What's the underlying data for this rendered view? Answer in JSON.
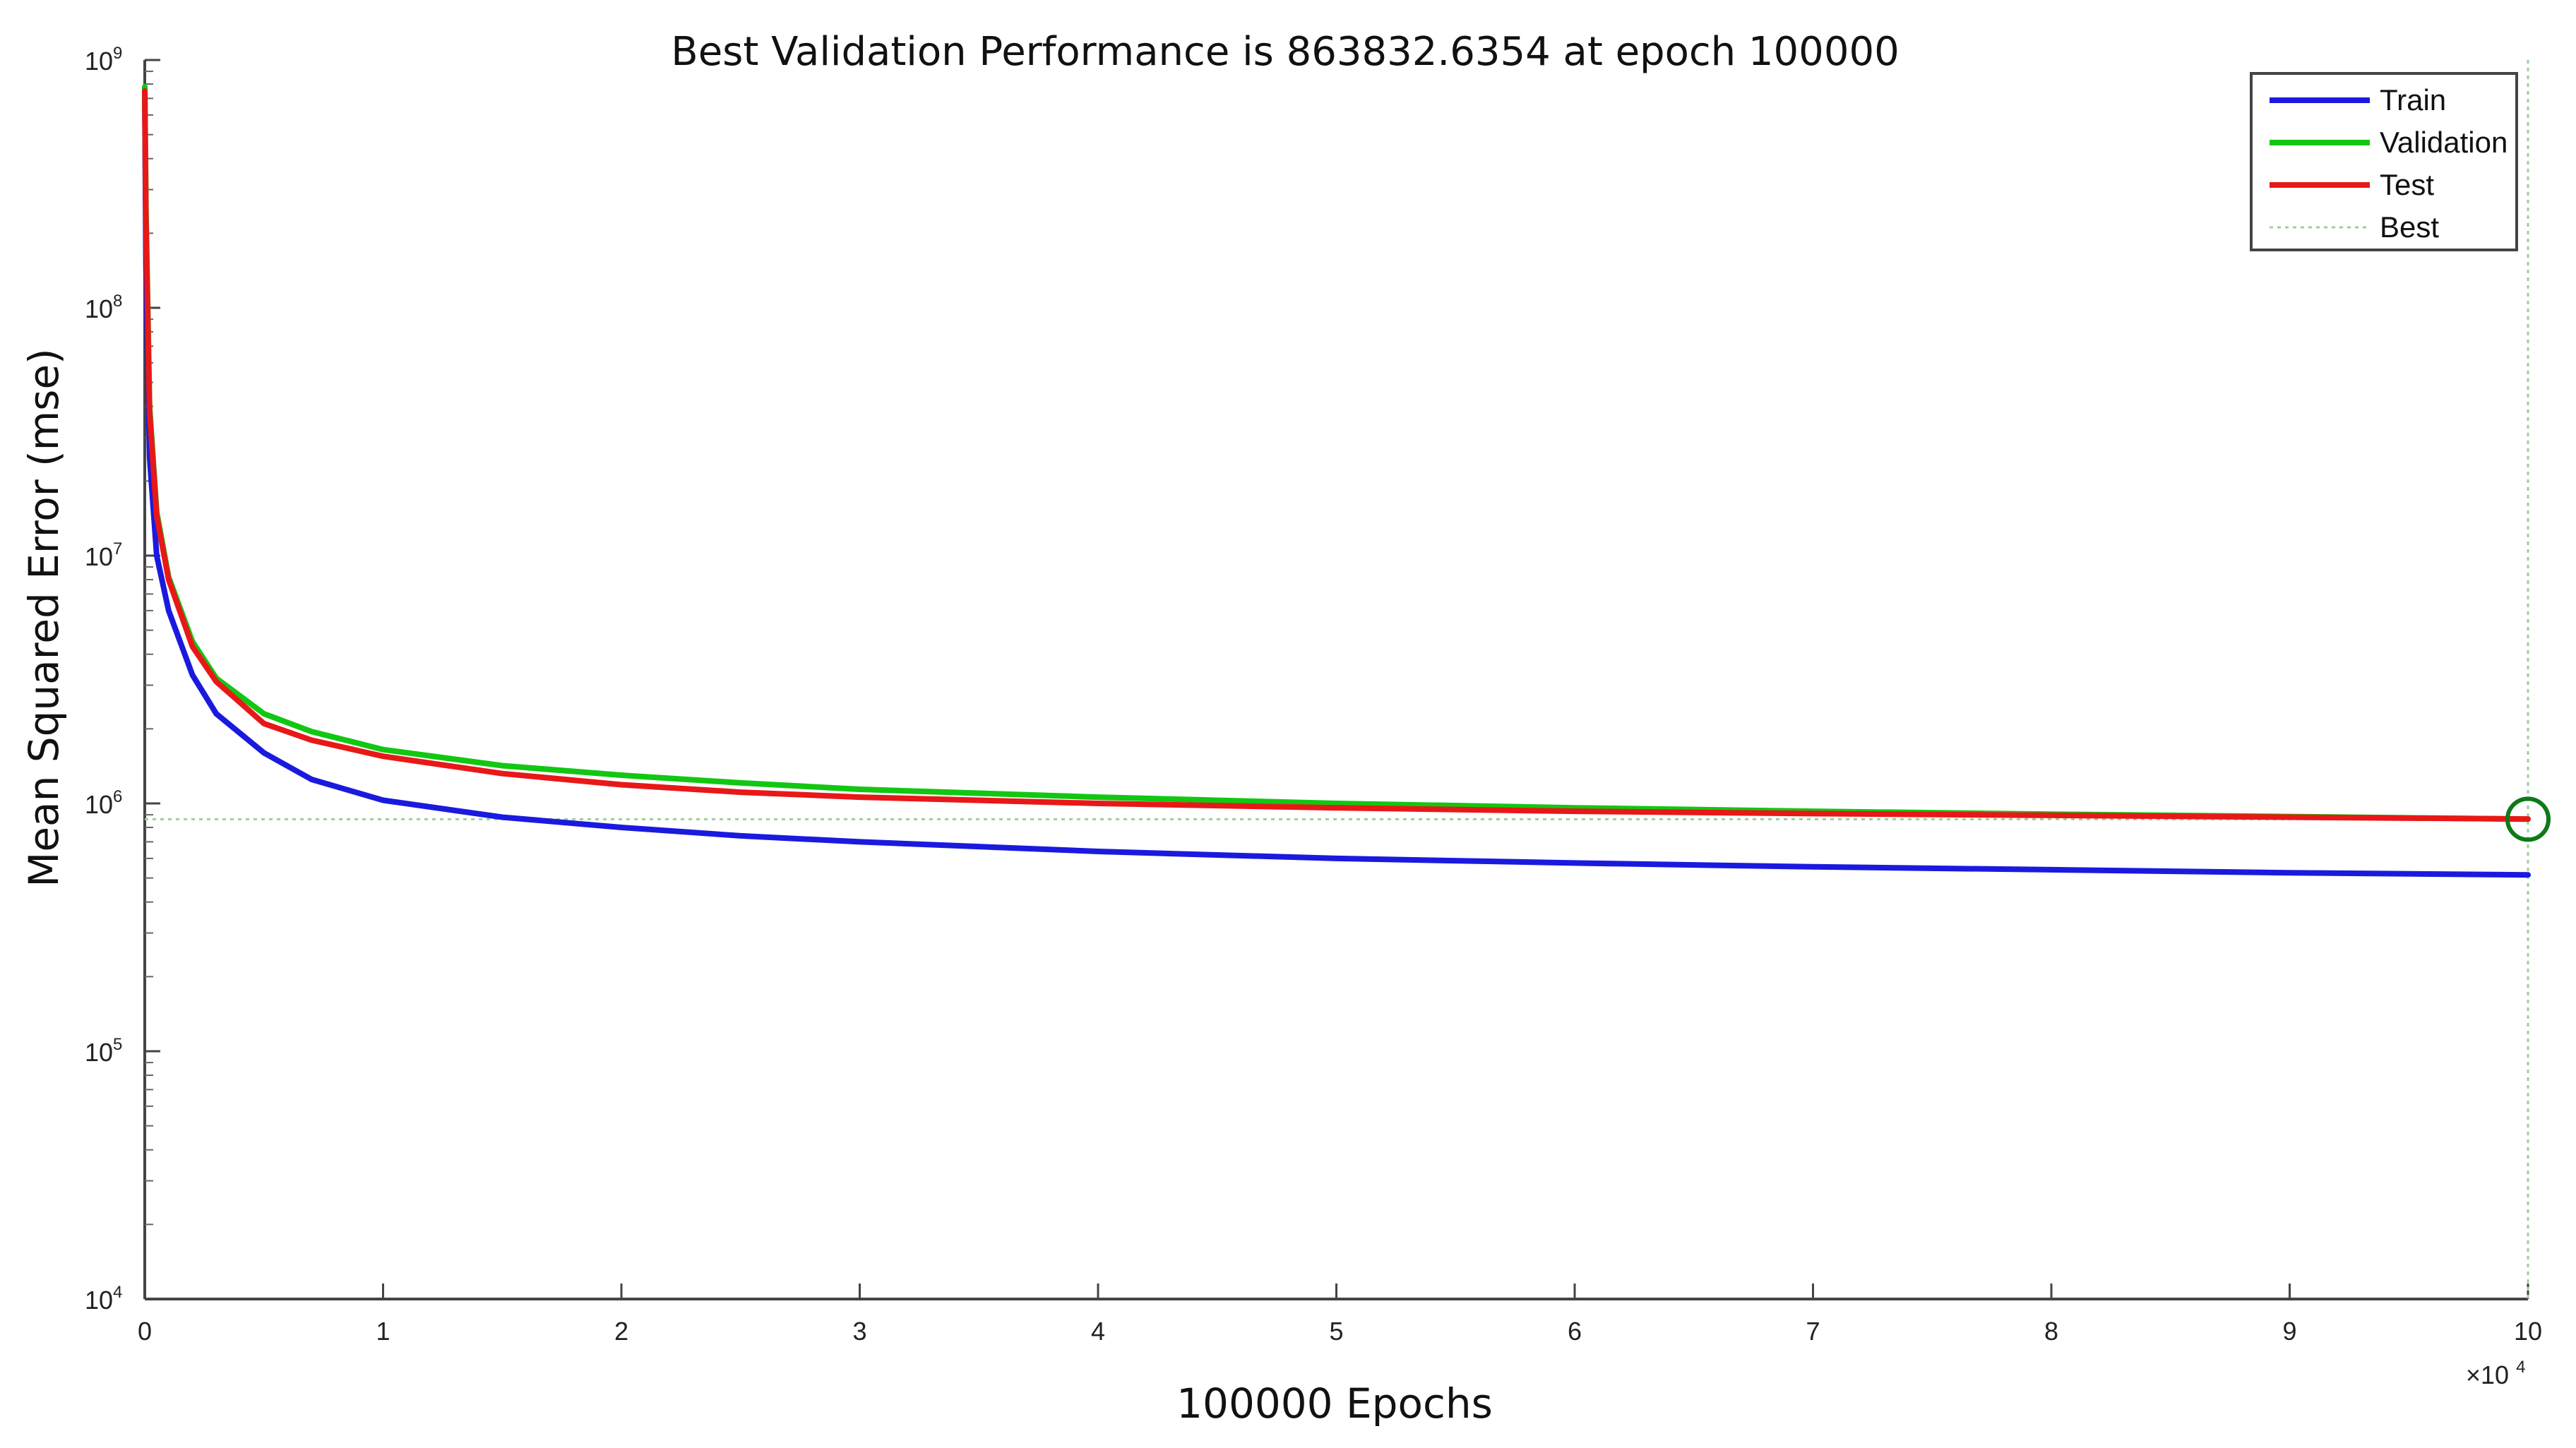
{
  "chart_data": {
    "type": "line",
    "title": "Best Validation Performance is 863832.6354 at epoch 100000",
    "xlabel": "100000 Epochs",
    "ylabel": "Mean Squared Error (mse)",
    "x_tick_labels": [
      "0",
      "1",
      "2",
      "3",
      "4",
      "5",
      "6",
      "7",
      "8",
      "9",
      "10"
    ],
    "x_multiplier": {
      "base": "×10",
      "exp": "4"
    },
    "y_tick_labels": [
      {
        "base": "10",
        "exp": "4"
      },
      {
        "base": "10",
        "exp": "5"
      },
      {
        "base": "10",
        "exp": "6"
      },
      {
        "base": "10",
        "exp": "7"
      },
      {
        "base": "10",
        "exp": "8"
      },
      {
        "base": "10",
        "exp": "9"
      }
    ],
    "xlim": [
      0,
      100000
    ],
    "ylim": [
      10000,
      1000000000
    ],
    "yscale": "log",
    "grid": false,
    "legend_position": "top-right",
    "series": [
      {
        "name": "Train",
        "color": "#1a1adf",
        "x": [
          0,
          50,
          200,
          500,
          1000,
          2000,
          3000,
          5000,
          7000,
          10000,
          15000,
          20000,
          25000,
          30000,
          40000,
          50000,
          60000,
          70000,
          80000,
          90000,
          100000
        ],
        "y": [
          750000000,
          150000000,
          25000000,
          10000000,
          6000000,
          3300000,
          2300000,
          1600000,
          1250000,
          1030000,
          880000,
          800000,
          740000,
          700000,
          640000,
          600000,
          575000,
          555000,
          540000,
          525000,
          515000
        ]
      },
      {
        "name": "Validation",
        "color": "#12c712",
        "x": [
          0,
          50,
          200,
          500,
          1000,
          2000,
          3000,
          5000,
          7000,
          10000,
          15000,
          20000,
          25000,
          30000,
          40000,
          50000,
          60000,
          70000,
          80000,
          90000,
          100000
        ],
        "y": [
          780000000,
          250000000,
          40000000,
          15000000,
          8200000,
          4500000,
          3200000,
          2300000,
          1950000,
          1650000,
          1420000,
          1300000,
          1210000,
          1140000,
          1060000,
          1000000,
          960000,
          930000,
          905000,
          885000,
          864000
        ]
      },
      {
        "name": "Test",
        "color": "#e81818",
        "x": [
          0,
          50,
          200,
          500,
          1000,
          2000,
          3000,
          5000,
          7000,
          10000,
          15000,
          20000,
          25000,
          30000,
          40000,
          50000,
          60000,
          70000,
          80000,
          90000,
          100000
        ],
        "y": [
          750000000,
          220000000,
          38000000,
          14500000,
          8000000,
          4300000,
          3100000,
          2100000,
          1800000,
          1550000,
          1320000,
          1190000,
          1110000,
          1060000,
          1000000,
          960000,
          930000,
          910000,
          895000,
          880000,
          865000
        ]
      }
    ],
    "best": {
      "name": "Best",
      "epoch": 100000,
      "value": 863832.6354,
      "color": "#9ccf9c"
    }
  }
}
